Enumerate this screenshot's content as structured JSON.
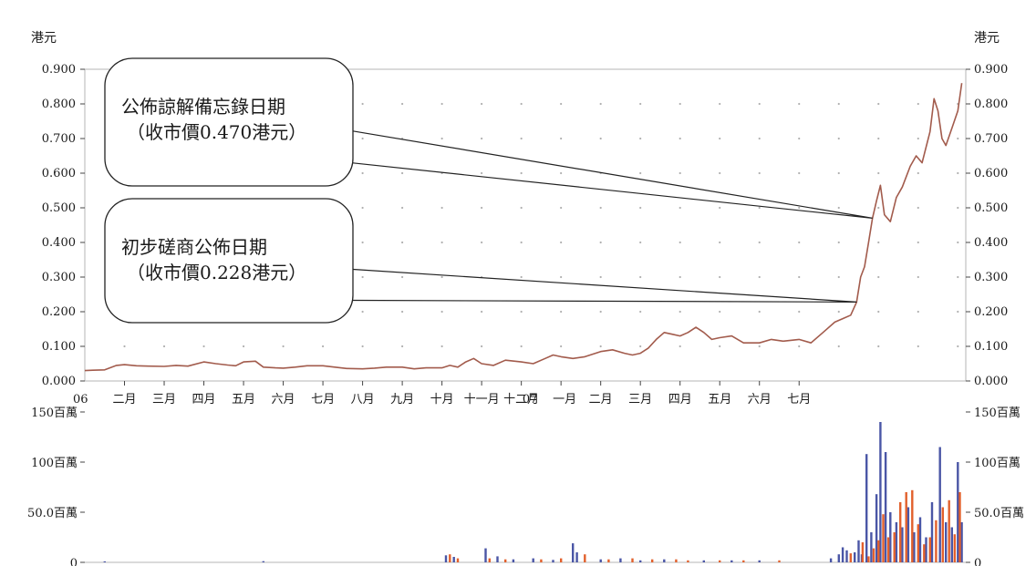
{
  "chart_data": [
    {
      "type": "line",
      "unit_left": "港元",
      "unit_right": "港元",
      "y_ticks": [
        "0.000",
        "0.100",
        "0.200",
        "0.300",
        "0.400",
        "0.500",
        "0.600",
        "0.700",
        "0.800",
        "0.900"
      ],
      "ylim": [
        0,
        0.9
      ],
      "grid": "dotted",
      "year_labels": [
        "06",
        "07"
      ],
      "month_labels": [
        "二月",
        "三月",
        "四月",
        "五月",
        "六月",
        "七月",
        "八月",
        "九月",
        "十月",
        "十一月",
        "十二月",
        "一月",
        "二月",
        "三月",
        "四月",
        "五月",
        "六月",
        "七月"
      ],
      "line_color": "#a25b4c",
      "series": [
        {
          "points": [
            [
              0.0,
              0.03
            ],
            [
              0.2,
              0.031
            ],
            [
              0.5,
              0.032
            ],
            [
              0.8,
              0.045
            ],
            [
              1.0,
              0.047
            ],
            [
              1.3,
              0.044
            ],
            [
              1.6,
              0.043
            ],
            [
              2.0,
              0.042
            ],
            [
              2.3,
              0.045
            ],
            [
              2.6,
              0.043
            ],
            [
              3.0,
              0.055
            ],
            [
              3.3,
              0.05
            ],
            [
              3.6,
              0.046
            ],
            [
              3.8,
              0.044
            ],
            [
              4.0,
              0.055
            ],
            [
              4.3,
              0.057
            ],
            [
              4.5,
              0.04
            ],
            [
              4.8,
              0.038
            ],
            [
              5.0,
              0.037
            ],
            [
              5.3,
              0.04
            ],
            [
              5.6,
              0.044
            ],
            [
              6.0,
              0.044
            ],
            [
              6.3,
              0.04
            ],
            [
              6.6,
              0.036
            ],
            [
              7.0,
              0.035
            ],
            [
              7.3,
              0.037
            ],
            [
              7.6,
              0.04
            ],
            [
              8.0,
              0.04
            ],
            [
              8.3,
              0.035
            ],
            [
              8.6,
              0.038
            ],
            [
              9.0,
              0.038
            ],
            [
              9.2,
              0.045
            ],
            [
              9.4,
              0.04
            ],
            [
              9.6,
              0.055
            ],
            [
              9.8,
              0.065
            ],
            [
              10.0,
              0.05
            ],
            [
              10.3,
              0.045
            ],
            [
              10.6,
              0.06
            ],
            [
              11.0,
              0.055
            ],
            [
              11.3,
              0.05
            ],
            [
              11.6,
              0.065
            ],
            [
              11.8,
              0.075
            ],
            [
              12.0,
              0.07
            ],
            [
              12.3,
              0.065
            ],
            [
              12.6,
              0.07
            ],
            [
              13.0,
              0.085
            ],
            [
              13.3,
              0.09
            ],
            [
              13.6,
              0.08
            ],
            [
              13.8,
              0.075
            ],
            [
              14.0,
              0.08
            ],
            [
              14.2,
              0.095
            ],
            [
              14.4,
              0.12
            ],
            [
              14.6,
              0.14
            ],
            [
              14.8,
              0.135
            ],
            [
              15.0,
              0.13
            ],
            [
              15.2,
              0.14
            ],
            [
              15.4,
              0.155
            ],
            [
              15.6,
              0.14
            ],
            [
              15.8,
              0.12
            ],
            [
              16.0,
              0.125
            ],
            [
              16.3,
              0.13
            ],
            [
              16.6,
              0.11
            ],
            [
              17.0,
              0.11
            ],
            [
              17.3,
              0.12
            ],
            [
              17.6,
              0.115
            ],
            [
              18.0,
              0.12
            ],
            [
              18.3,
              0.11
            ],
            [
              18.6,
              0.14
            ],
            [
              18.9,
              0.17
            ],
            [
              19.1,
              0.18
            ],
            [
              19.3,
              0.19
            ],
            [
              19.45,
              0.228
            ],
            [
              19.55,
              0.3
            ],
            [
              19.65,
              0.33
            ],
            [
              19.75,
              0.4
            ],
            [
              19.85,
              0.47
            ],
            [
              19.95,
              0.52
            ],
            [
              20.05,
              0.565
            ],
            [
              20.15,
              0.48
            ],
            [
              20.3,
              0.46
            ],
            [
              20.45,
              0.53
            ],
            [
              20.6,
              0.56
            ],
            [
              20.8,
              0.62
            ],
            [
              20.95,
              0.65
            ],
            [
              21.1,
              0.63
            ],
            [
              21.3,
              0.72
            ],
            [
              21.4,
              0.815
            ],
            [
              21.5,
              0.78
            ],
            [
              21.6,
              0.7
            ],
            [
              21.7,
              0.68
            ],
            [
              21.85,
              0.73
            ],
            [
              22.0,
              0.78
            ],
            [
              22.1,
              0.86
            ]
          ]
        }
      ],
      "annotations": [
        {
          "lines": [
            "公佈諒解備忘錄日期",
            "（收市價0.470港元）"
          ],
          "target": [
            19.85,
            0.47
          ]
        },
        {
          "lines": [
            "初步磋商公佈日期",
            "（收市價0.228港元）"
          ],
          "target": [
            19.45,
            0.228
          ]
        }
      ]
    },
    {
      "type": "bar",
      "y_ticks_left": [
        "0",
        "50.0百萬",
        "100百萬",
        "150百萬"
      ],
      "y_ticks_right": [
        "0",
        "50.0百萬",
        "100百萬",
        "150百萬"
      ],
      "ylim": [
        0,
        150
      ],
      "series": [
        {
          "color": "#4a56a6",
          "points": [
            [
              0.5,
              1.0
            ],
            [
              4.5,
              1.2
            ],
            [
              9.1,
              7.0
            ],
            [
              9.3,
              5.5
            ],
            [
              10.1,
              14.0
            ],
            [
              10.4,
              6.0
            ],
            [
              10.8,
              3.0
            ],
            [
              11.3,
              4.0
            ],
            [
              11.8,
              2.5
            ],
            [
              12.3,
              19.0
            ],
            [
              12.4,
              10.0
            ],
            [
              13.0,
              3.0
            ],
            [
              13.5,
              4.0
            ],
            [
              14.0,
              2.0
            ],
            [
              14.6,
              3.0
            ],
            [
              15.6,
              2.0
            ],
            [
              16.3,
              2.0
            ],
            [
              17.0,
              2.0
            ],
            [
              18.8,
              4.0
            ],
            [
              19.0,
              8.0
            ],
            [
              19.1,
              15.0
            ],
            [
              19.2,
              12.0
            ],
            [
              19.4,
              10.0
            ],
            [
              19.5,
              22.0
            ],
            [
              19.58,
              8.0
            ],
            [
              19.7,
              108.0
            ],
            [
              19.82,
              30.0
            ],
            [
              19.95,
              68.0
            ],
            [
              20.05,
              140.0
            ],
            [
              20.18,
              110.0
            ],
            [
              20.3,
              50.0
            ],
            [
              20.45,
              40.0
            ],
            [
              20.6,
              35.0
            ],
            [
              20.75,
              55.0
            ],
            [
              20.9,
              30.0
            ],
            [
              21.05,
              45.0
            ],
            [
              21.2,
              25.0
            ],
            [
              21.35,
              60.0
            ],
            [
              21.55,
              115.0
            ],
            [
              21.7,
              40.0
            ],
            [
              21.85,
              35.0
            ],
            [
              22.0,
              100.0
            ],
            [
              22.1,
              40.0
            ]
          ]
        },
        {
          "color": "#e2602c",
          "points": [
            [
              9.2,
              8.0
            ],
            [
              9.4,
              4.0
            ],
            [
              10.2,
              4.0
            ],
            [
              10.6,
              3.0
            ],
            [
              11.5,
              3.0
            ],
            [
              12.0,
              4.0
            ],
            [
              12.6,
              8.0
            ],
            [
              13.2,
              3.0
            ],
            [
              13.8,
              4.0
            ],
            [
              14.3,
              3.0
            ],
            [
              14.9,
              3.0
            ],
            [
              15.2,
              2.0
            ],
            [
              16.0,
              2.0
            ],
            [
              16.6,
              2.0
            ],
            [
              17.5,
              2.0
            ],
            [
              19.3,
              9.0
            ],
            [
              19.6,
              20.0
            ],
            [
              19.75,
              6.0
            ],
            [
              19.88,
              14.0
            ],
            [
              20.0,
              22.0
            ],
            [
              20.12,
              48.0
            ],
            [
              20.25,
              25.0
            ],
            [
              20.4,
              30.0
            ],
            [
              20.55,
              60.0
            ],
            [
              20.7,
              70.0
            ],
            [
              20.85,
              72.0
            ],
            [
              21.0,
              38.0
            ],
            [
              21.15,
              18.0
            ],
            [
              21.3,
              25.0
            ],
            [
              21.45,
              42.0
            ],
            [
              21.62,
              55.0
            ],
            [
              21.78,
              62.0
            ],
            [
              21.92,
              28.0
            ],
            [
              22.05,
              70.0
            ]
          ]
        }
      ]
    }
  ]
}
